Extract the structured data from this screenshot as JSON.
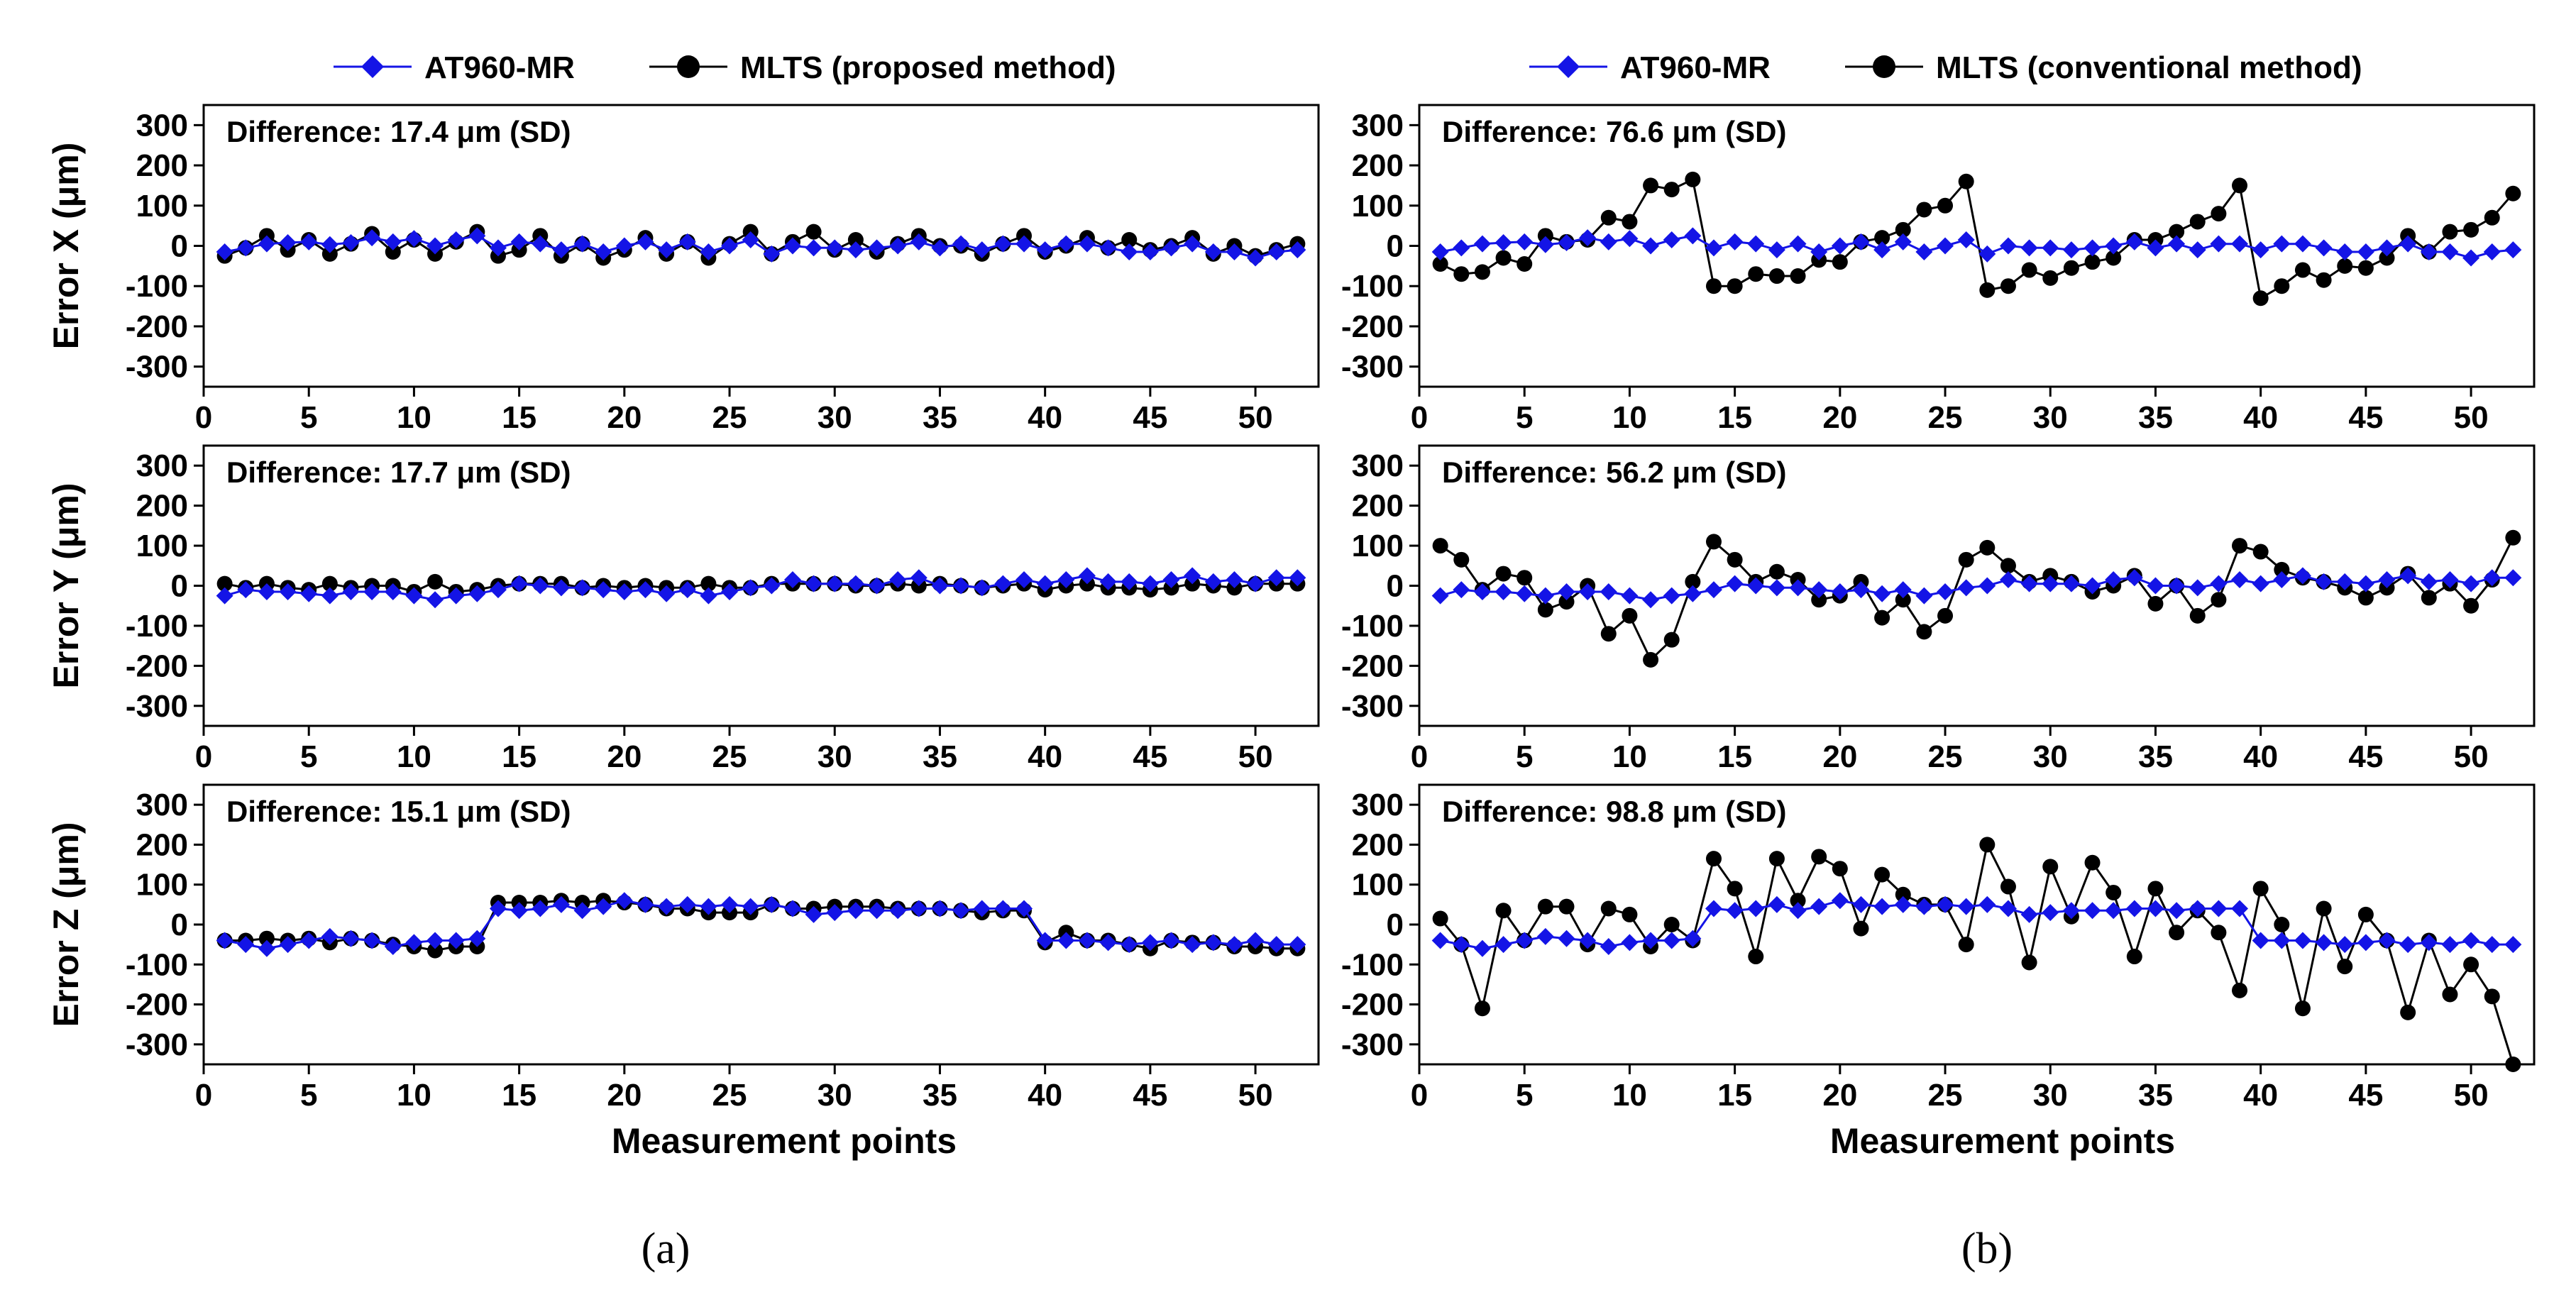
{
  "colors": {
    "reference": "#1414e6",
    "mlts": "#000000"
  },
  "legends": [
    {
      "ref_label": "AT960-MR",
      "mlts_label": "MLTS (proposed method)"
    },
    {
      "ref_label": "AT960-MR",
      "mlts_label": "MLTS (conventional method)"
    }
  ],
  "panel_labels": [
    "(a)",
    "(b)"
  ],
  "xlabel": "Measurement points",
  "chart_data": [
    {
      "type": "line",
      "column": 0,
      "row": 0,
      "ylabel": "Error X (μm)",
      "annotation": "Difference: 17.4 μm (SD)",
      "xlim": [
        0,
        53
      ],
      "ylim": [
        -350,
        350
      ],
      "xticks": [
        0,
        5,
        10,
        15,
        20,
        25,
        30,
        35,
        40,
        45,
        50
      ],
      "yticks": [
        300,
        200,
        100,
        0,
        -100,
        -200,
        -300
      ],
      "x": [
        1,
        2,
        3,
        4,
        5,
        6,
        7,
        8,
        9,
        10,
        11,
        12,
        13,
        14,
        15,
        16,
        17,
        18,
        19,
        20,
        21,
        22,
        23,
        24,
        25,
        26,
        27,
        28,
        29,
        30,
        31,
        32,
        33,
        34,
        35,
        36,
        37,
        38,
        39,
        40,
        41,
        42,
        43,
        44,
        45,
        46,
        47,
        48,
        49,
        50,
        51,
        52
      ],
      "series": [
        {
          "name": "AT960-MR",
          "values": [
            -15,
            -5,
            5,
            8,
            10,
            3,
            8,
            20,
            10,
            18,
            0,
            15,
            25,
            -5,
            10,
            5,
            -10,
            5,
            -15,
            0,
            10,
            -10,
            10,
            -15,
            0,
            15,
            -20,
            0,
            -5,
            -5,
            -10,
            -5,
            0,
            10,
            -5,
            5,
            -10,
            5,
            5,
            -10,
            5,
            5,
            -5,
            -15,
            -15,
            -5,
            5,
            -15,
            -15,
            -30,
            -15,
            -10
          ]
        },
        {
          "name": "MLTS",
          "values": [
            -25,
            -5,
            25,
            -10,
            15,
            -20,
            5,
            30,
            -15,
            15,
            -20,
            10,
            35,
            -25,
            -10,
            25,
            -25,
            5,
            -30,
            -10,
            20,
            -20,
            10,
            -30,
            5,
            35,
            -20,
            10,
            35,
            -10,
            15,
            -15,
            5,
            25,
            0,
            0,
            -20,
            5,
            25,
            -15,
            0,
            20,
            -5,
            15,
            -10,
            0,
            20,
            -20,
            0,
            -25,
            -10,
            5
          ]
        }
      ]
    },
    {
      "type": "line",
      "column": 0,
      "row": 1,
      "ylabel": "Error Y (μm)",
      "annotation": "Difference: 17.7 μm (SD)",
      "xlim": [
        0,
        53
      ],
      "ylim": [
        -350,
        350
      ],
      "xticks": [
        0,
        5,
        10,
        15,
        20,
        25,
        30,
        35,
        40,
        45,
        50
      ],
      "yticks": [
        300,
        200,
        100,
        0,
        -100,
        -200,
        -300
      ],
      "x": [
        1,
        2,
        3,
        4,
        5,
        6,
        7,
        8,
        9,
        10,
        11,
        12,
        13,
        14,
        15,
        16,
        17,
        18,
        19,
        20,
        21,
        22,
        23,
        24,
        25,
        26,
        27,
        28,
        29,
        30,
        31,
        32,
        33,
        34,
        35,
        36,
        37,
        38,
        39,
        40,
        41,
        42,
        43,
        44,
        45,
        46,
        47,
        48,
        49,
        50,
        51,
        52
      ],
      "series": [
        {
          "name": "AT960-MR",
          "values": [
            -25,
            -10,
            -15,
            -15,
            -20,
            -25,
            -15,
            -15,
            -15,
            -25,
            -35,
            -25,
            -20,
            -10,
            5,
            0,
            -5,
            -5,
            -10,
            -15,
            -10,
            -20,
            -10,
            -25,
            -15,
            -5,
            0,
            15,
            5,
            5,
            5,
            0,
            15,
            20,
            0,
            0,
            -5,
            5,
            15,
            5,
            15,
            25,
            10,
            10,
            5,
            15,
            25,
            10,
            15,
            5,
            20,
            20
          ]
        },
        {
          "name": "MLTS",
          "values": [
            5,
            -5,
            5,
            -5,
            -10,
            5,
            -5,
            0,
            0,
            -15,
            10,
            -15,
            -10,
            0,
            5,
            5,
            5,
            -5,
            0,
            -5,
            0,
            -5,
            -5,
            5,
            -5,
            -5,
            5,
            5,
            5,
            5,
            0,
            0,
            5,
            0,
            5,
            0,
            -5,
            0,
            5,
            -10,
            0,
            5,
            -5,
            -5,
            -10,
            -5,
            5,
            0,
            -5,
            5,
            5,
            5
          ]
        }
      ]
    },
    {
      "type": "line",
      "column": 0,
      "row": 2,
      "ylabel": "Error Z (μm)",
      "annotation": "Difference: 15.1 μm (SD)",
      "xlim": [
        0,
        53
      ],
      "ylim": [
        -350,
        350
      ],
      "xticks": [
        0,
        5,
        10,
        15,
        20,
        25,
        30,
        35,
        40,
        45,
        50
      ],
      "yticks": [
        300,
        200,
        100,
        0,
        -100,
        -200,
        -300
      ],
      "x": [
        1,
        2,
        3,
        4,
        5,
        6,
        7,
        8,
        9,
        10,
        11,
        12,
        13,
        14,
        15,
        16,
        17,
        18,
        19,
        20,
        21,
        22,
        23,
        24,
        25,
        26,
        27,
        28,
        29,
        30,
        31,
        32,
        33,
        34,
        35,
        36,
        37,
        38,
        39,
        40,
        41,
        42,
        43,
        44,
        45,
        46,
        47,
        48,
        49,
        50,
        51,
        52
      ],
      "series": [
        {
          "name": "AT960-MR",
          "values": [
            -40,
            -50,
            -60,
            -50,
            -40,
            -30,
            -35,
            -40,
            -55,
            -45,
            -40,
            -40,
            -35,
            40,
            35,
            40,
            50,
            35,
            45,
            60,
            50,
            45,
            50,
            45,
            50,
            45,
            50,
            40,
            25,
            30,
            35,
            35,
            35,
            40,
            40,
            35,
            40,
            40,
            40,
            -40,
            -40,
            -40,
            -45,
            -50,
            -45,
            -40,
            -50,
            -45,
            -50,
            -40,
            -50,
            -50
          ]
        },
        {
          "name": "MLTS",
          "values": [
            -40,
            -40,
            -35,
            -40,
            -35,
            -45,
            -35,
            -40,
            -50,
            -55,
            -65,
            -55,
            -55,
            55,
            55,
            55,
            60,
            55,
            60,
            55,
            50,
            40,
            40,
            30,
            30,
            30,
            50,
            40,
            40,
            45,
            45,
            45,
            40,
            40,
            40,
            35,
            30,
            35,
            35,
            -45,
            -20,
            -40,
            -40,
            -50,
            -60,
            -40,
            -45,
            -45,
            -55,
            -55,
            -60,
            -60
          ]
        }
      ]
    },
    {
      "type": "line",
      "column": 1,
      "row": 0,
      "ylabel": "",
      "annotation": "Difference: 76.6 μm (SD)",
      "xlim": [
        0,
        53
      ],
      "ylim": [
        -350,
        350
      ],
      "xticks": [
        0,
        5,
        10,
        15,
        20,
        25,
        30,
        35,
        40,
        45,
        50
      ],
      "yticks": [
        300,
        200,
        100,
        0,
        -100,
        -200,
        -300
      ],
      "x": [
        1,
        2,
        3,
        4,
        5,
        6,
        7,
        8,
        9,
        10,
        11,
        12,
        13,
        14,
        15,
        16,
        17,
        18,
        19,
        20,
        21,
        22,
        23,
        24,
        25,
        26,
        27,
        28,
        29,
        30,
        31,
        32,
        33,
        34,
        35,
        36,
        37,
        38,
        39,
        40,
        41,
        42,
        43,
        44,
        45,
        46,
        47,
        48,
        49,
        50,
        51,
        52
      ],
      "series": [
        {
          "name": "AT960-MR",
          "values": [
            -15,
            -5,
            5,
            8,
            10,
            3,
            8,
            20,
            10,
            18,
            0,
            15,
            25,
            -5,
            10,
            5,
            -10,
            5,
            -15,
            0,
            10,
            -10,
            10,
            -15,
            0,
            15,
            -20,
            0,
            -5,
            -5,
            -10,
            -5,
            0,
            10,
            -5,
            5,
            -10,
            5,
            5,
            -10,
            5,
            5,
            -5,
            -15,
            -15,
            -5,
            5,
            -15,
            -15,
            -30,
            -15,
            -10
          ]
        },
        {
          "name": "MLTS",
          "values": [
            -45,
            -70,
            -65,
            -30,
            -45,
            25,
            10,
            15,
            70,
            60,
            150,
            140,
            165,
            -100,
            -100,
            -70,
            -75,
            -75,
            -35,
            -40,
            10,
            20,
            40,
            90,
            100,
            160,
            -110,
            -100,
            -60,
            -80,
            -55,
            -40,
            -30,
            15,
            15,
            35,
            60,
            80,
            150,
            -130,
            -100,
            -60,
            -85,
            -50,
            -55,
            -30,
            25,
            -15,
            35,
            40,
            70,
            130
          ]
        }
      ]
    },
    {
      "type": "line",
      "column": 1,
      "row": 1,
      "ylabel": "",
      "annotation": "Difference: 56.2 μm (SD)",
      "xlim": [
        0,
        53
      ],
      "ylim": [
        -350,
        350
      ],
      "xticks": [
        0,
        5,
        10,
        15,
        20,
        25,
        30,
        35,
        40,
        45,
        50
      ],
      "yticks": [
        300,
        200,
        100,
        0,
        -100,
        -200,
        -300
      ],
      "x": [
        1,
        2,
        3,
        4,
        5,
        6,
        7,
        8,
        9,
        10,
        11,
        12,
        13,
        14,
        15,
        16,
        17,
        18,
        19,
        20,
        21,
        22,
        23,
        24,
        25,
        26,
        27,
        28,
        29,
        30,
        31,
        32,
        33,
        34,
        35,
        36,
        37,
        38,
        39,
        40,
        41,
        42,
        43,
        44,
        45,
        46,
        47,
        48,
        49,
        50,
        51,
        52
      ],
      "series": [
        {
          "name": "AT960-MR",
          "values": [
            -25,
            -10,
            -15,
            -15,
            -20,
            -25,
            -15,
            -15,
            -15,
            -25,
            -35,
            -25,
            -20,
            -10,
            5,
            0,
            -5,
            -5,
            -10,
            -15,
            -10,
            -20,
            -10,
            -25,
            -15,
            -5,
            0,
            15,
            5,
            5,
            5,
            0,
            15,
            20,
            0,
            0,
            -5,
            5,
            15,
            5,
            15,
            25,
            10,
            10,
            5,
            15,
            25,
            10,
            15,
            5,
            20,
            20
          ]
        },
        {
          "name": "MLTS",
          "values": [
            100,
            65,
            -10,
            30,
            20,
            -60,
            -40,
            0,
            -120,
            -75,
            -185,
            -135,
            10,
            110,
            65,
            10,
            35,
            15,
            -35,
            -25,
            10,
            -80,
            -35,
            -115,
            -75,
            65,
            95,
            50,
            10,
            25,
            10,
            -15,
            0,
            25,
            -45,
            0,
            -75,
            -35,
            100,
            85,
            40,
            20,
            10,
            -5,
            -30,
            -5,
            30,
            -30,
            5,
            -50,
            15,
            120
          ]
        }
      ]
    },
    {
      "type": "line",
      "column": 1,
      "row": 2,
      "ylabel": "",
      "annotation": "Difference: 98.8 μm (SD)",
      "xlim": [
        0,
        53
      ],
      "ylim": [
        -350,
        350
      ],
      "xticks": [
        0,
        5,
        10,
        15,
        20,
        25,
        30,
        35,
        40,
        45,
        50
      ],
      "yticks": [
        300,
        200,
        100,
        0,
        -100,
        -200,
        -300
      ],
      "x": [
        1,
        2,
        3,
        4,
        5,
        6,
        7,
        8,
        9,
        10,
        11,
        12,
        13,
        14,
        15,
        16,
        17,
        18,
        19,
        20,
        21,
        22,
        23,
        24,
        25,
        26,
        27,
        28,
        29,
        30,
        31,
        32,
        33,
        34,
        35,
        36,
        37,
        38,
        39,
        40,
        41,
        42,
        43,
        44,
        45,
        46,
        47,
        48,
        49,
        50,
        51,
        52
      ],
      "series": [
        {
          "name": "AT960-MR",
          "values": [
            -40,
            -50,
            -60,
            -50,
            -40,
            -30,
            -35,
            -40,
            -55,
            -45,
            -40,
            -40,
            -35,
            40,
            35,
            40,
            50,
            35,
            45,
            60,
            50,
            45,
            50,
            45,
            50,
            45,
            50,
            40,
            25,
            30,
            35,
            35,
            35,
            40,
            40,
            35,
            40,
            40,
            40,
            -40,
            -40,
            -40,
            -45,
            -50,
            -45,
            -40,
            -50,
            -45,
            -50,
            -40,
            -50,
            -50
          ]
        },
        {
          "name": "MLTS",
          "values": [
            15,
            -50,
            -210,
            35,
            -40,
            45,
            45,
            -50,
            40,
            25,
            -55,
            0,
            -40,
            165,
            90,
            -80,
            165,
            60,
            170,
            140,
            -10,
            125,
            75,
            50,
            50,
            -50,
            200,
            95,
            -95,
            145,
            20,
            155,
            80,
            -80,
            90,
            -20,
            35,
            -20,
            -165,
            90,
            0,
            -210,
            40,
            -105,
            25,
            -40,
            -220,
            -40,
            -175,
            -100,
            -180,
            -350
          ]
        }
      ]
    }
  ]
}
